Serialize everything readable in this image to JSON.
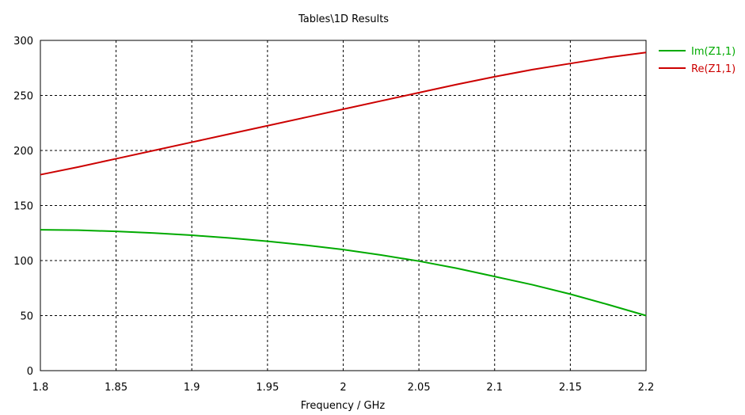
{
  "chart_data": {
    "type": "line",
    "title": "Tables\\1D Results",
    "xlabel": "Frequency / GHz",
    "ylabel": "",
    "xlim": [
      1.8,
      2.2
    ],
    "ylim": [
      0,
      300
    ],
    "x_ticks": [
      "1.8",
      "1.85",
      "1.9",
      "1.95",
      "2",
      "2.05",
      "2.1",
      "2.15",
      "2.2"
    ],
    "y_ticks": [
      "0",
      "50",
      "100",
      "150",
      "200",
      "250",
      "300"
    ],
    "grid": true,
    "legend_position": "right",
    "x": [
      1.8,
      1.825,
      1.85,
      1.875,
      1.9,
      1.925,
      1.95,
      1.975,
      2.0,
      2.025,
      2.05,
      2.075,
      2.1,
      2.125,
      2.15,
      2.175,
      2.2
    ],
    "series": [
      {
        "name": "Im(Z1,1)",
        "color": "#00aa00",
        "values": [
          128,
          127.6,
          126.5,
          125,
          123,
          120.5,
          117.5,
          114,
          110,
          105,
          99.5,
          93,
          85.5,
          78,
          69.5,
          60,
          50
        ]
      },
      {
        "name": "Re(Z1,1)",
        "color": "#cc0000",
        "values": [
          178,
          185,
          192.5,
          200,
          207.5,
          215,
          222.5,
          230,
          237.5,
          245,
          252.5,
          260,
          267,
          273.5,
          279,
          284.5,
          289
        ]
      }
    ]
  }
}
